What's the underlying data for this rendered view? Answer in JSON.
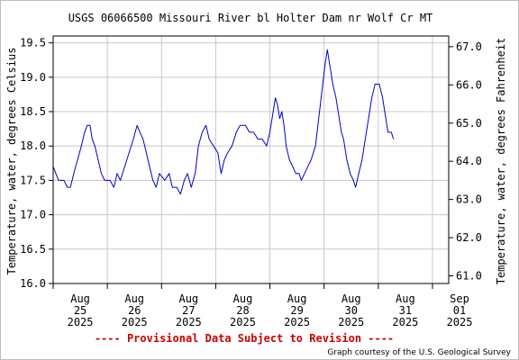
{
  "chart_data": {
    "type": "line",
    "title": "USGS 06066500 Missouri River bl Holter Dam nr Wolf Cr MT",
    "ylabel": "Temperature, water, degrees Celsius",
    "ylabel_right": "Temperature, water, degrees Fahrenheit",
    "ylim": [
      16.0,
      19.6
    ],
    "yticks": [
      "16.0",
      "16.5",
      "17.0",
      "17.5",
      "18.0",
      "18.5",
      "19.0",
      "19.5"
    ],
    "ylim_right": [
      60.8,
      67.28
    ],
    "yticks_right": [
      "61.0",
      "62.0",
      "63.0",
      "64.0",
      "65.0",
      "66.0",
      "67.0"
    ],
    "xlim": [
      0,
      7.3
    ],
    "xticks": [
      {
        "x": 0.5,
        "lines": [
          "Aug",
          "25",
          "2025"
        ]
      },
      {
        "x": 1.5,
        "lines": [
          "Aug",
          "26",
          "2025"
        ]
      },
      {
        "x": 2.5,
        "lines": [
          "Aug",
          "27",
          "2025"
        ]
      },
      {
        "x": 3.5,
        "lines": [
          "Aug",
          "28",
          "2025"
        ]
      },
      {
        "x": 4.5,
        "lines": [
          "Aug",
          "29",
          "2025"
        ]
      },
      {
        "x": 5.5,
        "lines": [
          "Aug",
          "30",
          "2025"
        ]
      },
      {
        "x": 6.5,
        "lines": [
          "Aug",
          "31",
          "2025"
        ]
      },
      {
        "x": 7.5,
        "lines": [
          "Sep",
          "01",
          "2025"
        ]
      }
    ],
    "grid": true,
    "series": [
      {
        "color": "#0000cc",
        "points": [
          [
            0.0,
            17.7
          ],
          [
            0.05,
            17.6
          ],
          [
            0.1,
            17.5
          ],
          [
            0.2,
            17.5
          ],
          [
            0.26,
            17.4
          ],
          [
            0.32,
            17.4
          ],
          [
            0.38,
            17.6
          ],
          [
            0.45,
            17.8
          ],
          [
            0.52,
            18.0
          ],
          [
            0.58,
            18.2
          ],
          [
            0.63,
            18.3
          ],
          [
            0.68,
            18.3
          ],
          [
            0.72,
            18.1
          ],
          [
            0.77,
            18.0
          ],
          [
            0.83,
            17.8
          ],
          [
            0.89,
            17.6
          ],
          [
            0.95,
            17.5
          ],
          [
            1.05,
            17.5
          ],
          [
            1.12,
            17.4
          ],
          [
            1.18,
            17.6
          ],
          [
            1.24,
            17.5
          ],
          [
            1.32,
            17.7
          ],
          [
            1.4,
            17.9
          ],
          [
            1.48,
            18.1
          ],
          [
            1.55,
            18.3
          ],
          [
            1.6,
            18.2
          ],
          [
            1.66,
            18.1
          ],
          [
            1.72,
            17.9
          ],
          [
            1.78,
            17.7
          ],
          [
            1.84,
            17.5
          ],
          [
            1.9,
            17.4
          ],
          [
            1.96,
            17.6
          ],
          [
            2.06,
            17.5
          ],
          [
            2.14,
            17.6
          ],
          [
            2.2,
            17.4
          ],
          [
            2.28,
            17.4
          ],
          [
            2.35,
            17.3
          ],
          [
            2.42,
            17.5
          ],
          [
            2.48,
            17.6
          ],
          [
            2.55,
            17.4
          ],
          [
            2.62,
            17.6
          ],
          [
            2.68,
            18.0
          ],
          [
            2.75,
            18.2
          ],
          [
            2.82,
            18.3
          ],
          [
            2.88,
            18.1
          ],
          [
            2.96,
            18.0
          ],
          [
            3.04,
            17.9
          ],
          [
            3.1,
            17.6
          ],
          [
            3.16,
            17.8
          ],
          [
            3.22,
            17.9
          ],
          [
            3.3,
            18.0
          ],
          [
            3.38,
            18.2
          ],
          [
            3.45,
            18.3
          ],
          [
            3.55,
            18.3
          ],
          [
            3.62,
            18.2
          ],
          [
            3.7,
            18.2
          ],
          [
            3.78,
            18.1
          ],
          [
            3.86,
            18.1
          ],
          [
            3.94,
            18.0
          ],
          [
            4.0,
            18.2
          ],
          [
            4.06,
            18.5
          ],
          [
            4.1,
            18.7
          ],
          [
            4.14,
            18.6
          ],
          [
            4.18,
            18.4
          ],
          [
            4.22,
            18.5
          ],
          [
            4.26,
            18.3
          ],
          [
            4.3,
            18.0
          ],
          [
            4.36,
            17.8
          ],
          [
            4.42,
            17.7
          ],
          [
            4.48,
            17.6
          ],
          [
            4.54,
            17.6
          ],
          [
            4.58,
            17.5
          ],
          [
            4.64,
            17.6
          ],
          [
            4.7,
            17.7
          ],
          [
            4.76,
            17.8
          ],
          [
            4.84,
            18.0
          ],
          [
            4.9,
            18.4
          ],
          [
            4.96,
            18.8
          ],
          [
            5.02,
            19.2
          ],
          [
            5.06,
            19.4
          ],
          [
            5.1,
            19.2
          ],
          [
            5.16,
            18.9
          ],
          [
            5.22,
            18.7
          ],
          [
            5.28,
            18.4
          ],
          [
            5.32,
            18.2
          ],
          [
            5.36,
            18.1
          ],
          [
            5.42,
            17.8
          ],
          [
            5.48,
            17.6
          ],
          [
            5.54,
            17.5
          ],
          [
            5.58,
            17.4
          ],
          [
            5.64,
            17.6
          ],
          [
            5.7,
            17.8
          ],
          [
            5.76,
            18.1
          ],
          [
            5.82,
            18.4
          ],
          [
            5.88,
            18.7
          ],
          [
            5.94,
            18.9
          ],
          [
            6.02,
            18.9
          ],
          [
            6.08,
            18.7
          ],
          [
            6.14,
            18.4
          ],
          [
            6.18,
            18.2
          ],
          [
            6.24,
            18.2
          ],
          [
            6.28,
            18.1
          ]
        ]
      }
    ]
  },
  "footer": {
    "provisional": "---- Provisional Data Subject to Revision ----",
    "credit": "Graph courtesy of the U.S. Geological Survey"
  }
}
